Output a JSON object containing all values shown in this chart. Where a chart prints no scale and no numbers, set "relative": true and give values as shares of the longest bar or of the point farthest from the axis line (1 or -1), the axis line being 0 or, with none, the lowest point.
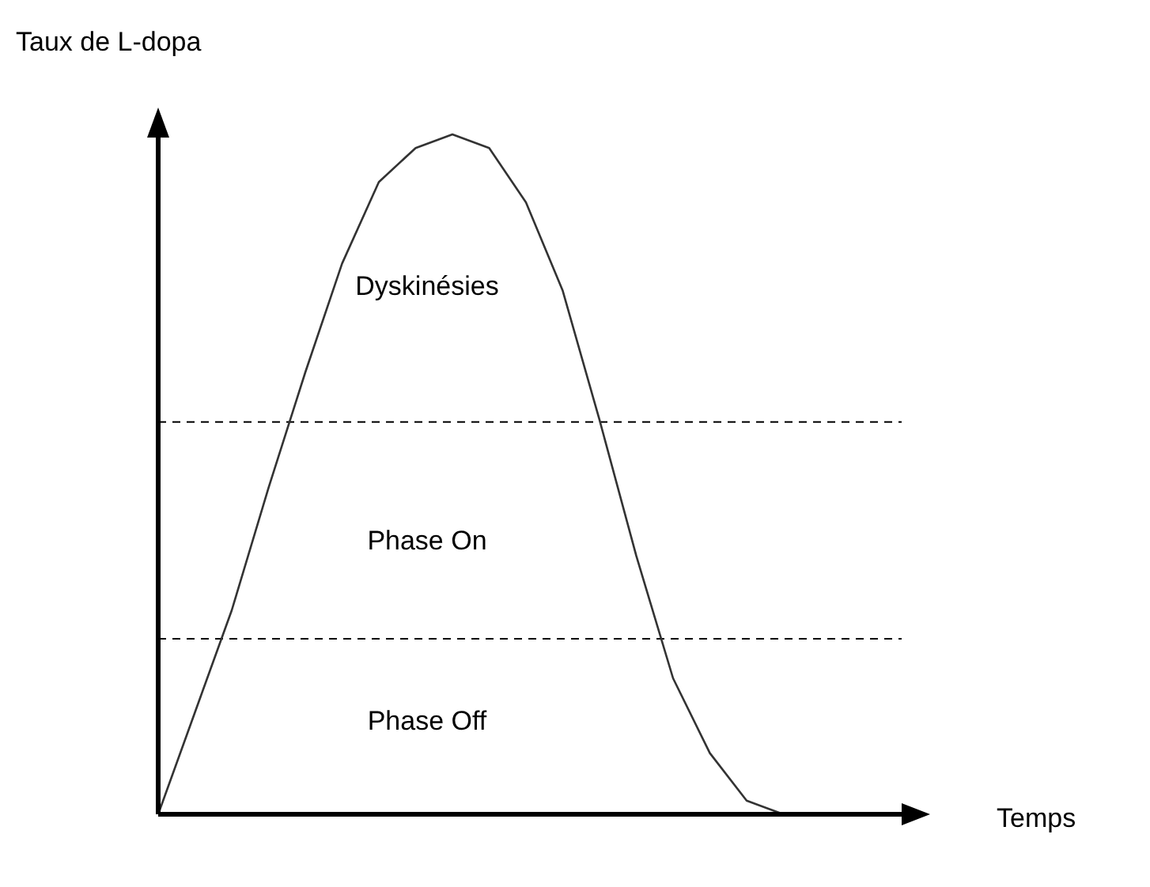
{
  "chart_data": {
    "type": "line",
    "relative": true,
    "xlabel": "Temps",
    "ylabel": "Taux de L-dopa",
    "categories": [
      null,
      null,
      null,
      null,
      null,
      null,
      null,
      null,
      null,
      null,
      null,
      null,
      null,
      null,
      null,
      null,
      null,
      null,
      null,
      null,
      null
    ],
    "series": [
      {
        "color": "#333333",
        "values": [
          0,
          0.15,
          0.3,
          0.48,
          0.65,
          0.81,
          0.93,
          0.98,
          1.0,
          0.98,
          0.9,
          0.77,
          0.58,
          0.38,
          0.2,
          0.09,
          0.02,
          0,
          null,
          null,
          null
        ]
      }
    ],
    "ref_lines": [
      {
        "axis": "y",
        "value": 0.577,
        "line_style": "dashed",
        "color": "#000000"
      },
      {
        "axis": "y",
        "value": 0.258,
        "line_style": "dashed",
        "color": "#000000"
      }
    ],
    "annotations": [
      "Dyskinésies",
      "Phase On",
      "Phase Off"
    ],
    "marker": "none",
    "line_style": "solid"
  }
}
